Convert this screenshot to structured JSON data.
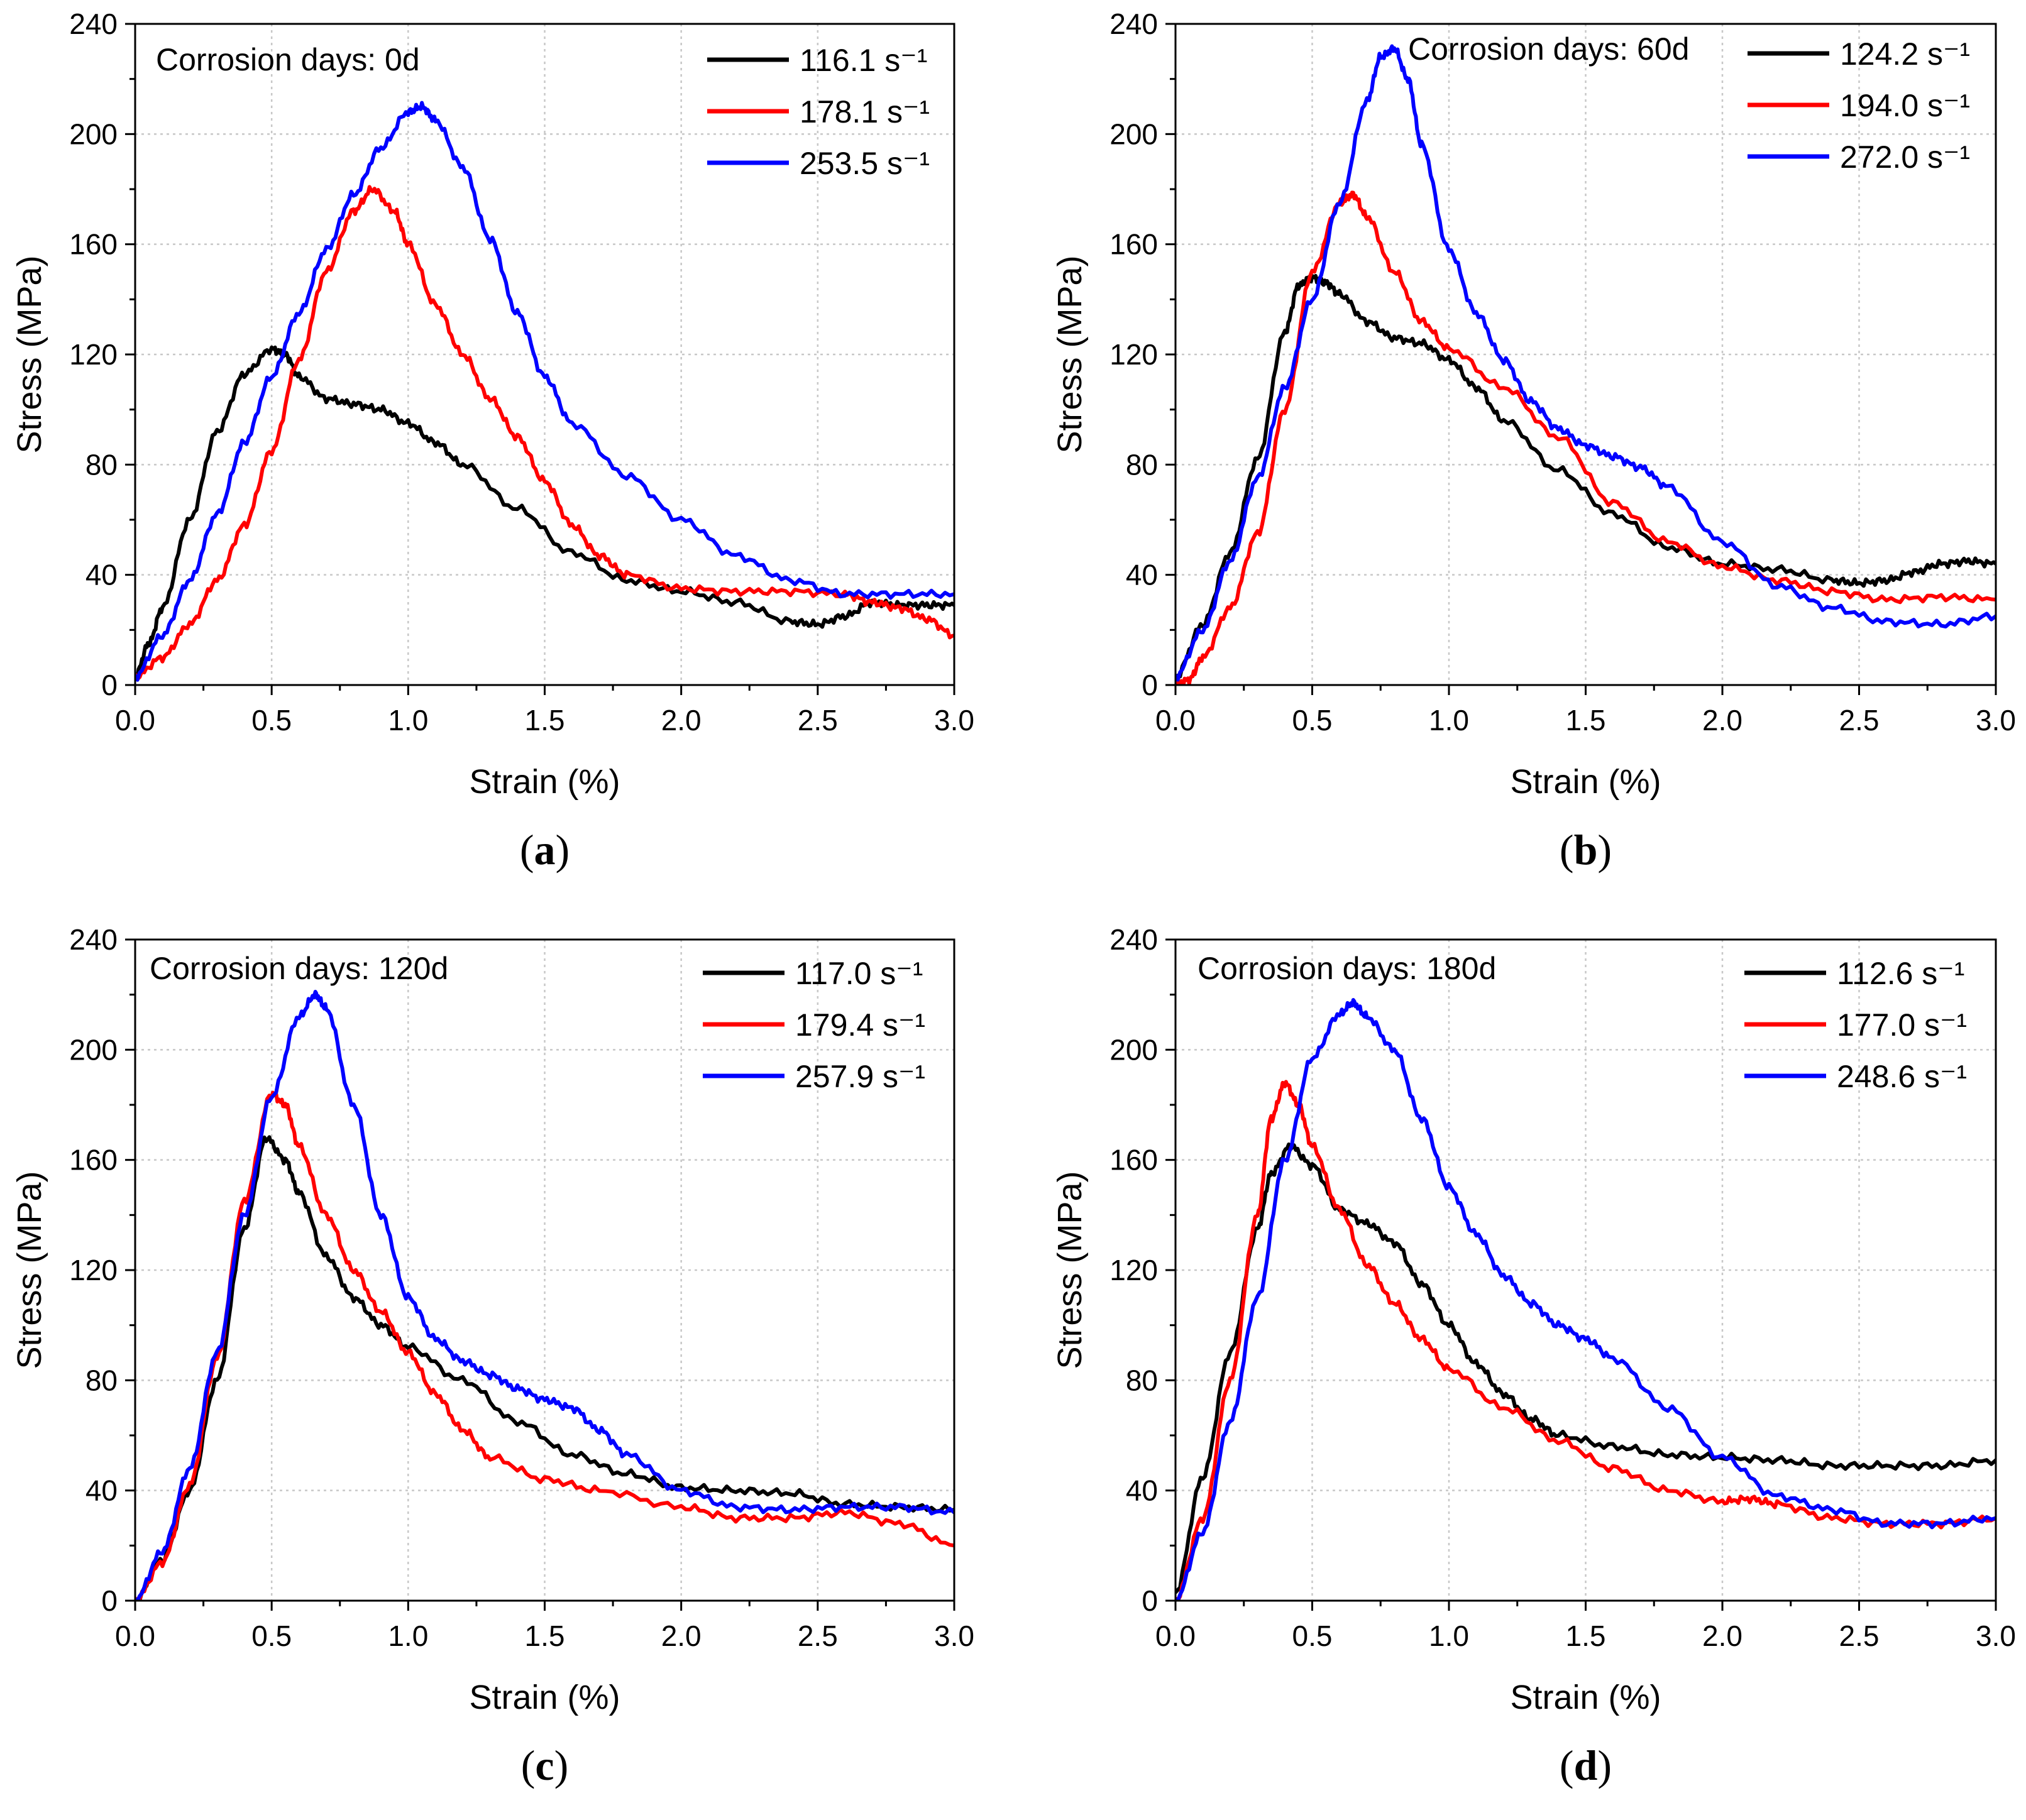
{
  "figure": {
    "panel_labels": [
      "a",
      "b",
      "c",
      "d"
    ]
  },
  "colors": {
    "black": "#000000",
    "red": "#ff0000",
    "blue": "#0000ff"
  },
  "chart_data": [
    {
      "type": "line",
      "panel": "a",
      "annotation": "Corrosion days: 0d",
      "xlabel": "Strain (%)",
      "ylabel": "Stress (MPa)",
      "xlim": [
        0,
        3.0
      ],
      "ylim": [
        0,
        240
      ],
      "xticks": [
        0.0,
        0.5,
        1.0,
        1.5,
        2.0,
        2.5,
        3.0
      ],
      "yticks": [
        0,
        40,
        80,
        120,
        160,
        200,
        240
      ],
      "grid": true,
      "legend_position": "top-right",
      "series": [
        {
          "name": "116.1 s⁻¹",
          "color": "black",
          "x": [
            0,
            0.05,
            0.1,
            0.2,
            0.3,
            0.4,
            0.5,
            0.55,
            0.6,
            0.7,
            0.8,
            0.9,
            1.0,
            1.1,
            1.2,
            1.4,
            1.6,
            1.8,
            2.0,
            2.2,
            2.4,
            2.5,
            2.6,
            2.7,
            2.8,
            2.9,
            3.0
          ],
          "y": [
            3,
            15,
            28,
            60,
            92,
            113,
            122,
            120,
            112,
            104,
            102,
            100,
            95,
            88,
            80,
            64,
            48,
            38,
            34,
            30,
            23,
            22,
            25,
            30,
            29,
            29,
            29
          ]
        },
        {
          "name": "178.1 s⁻¹",
          "color": "red",
          "x": [
            0,
            0.1,
            0.2,
            0.3,
            0.4,
            0.5,
            0.6,
            0.7,
            0.8,
            0.87,
            0.95,
            1.0,
            1.1,
            1.2,
            1.3,
            1.4,
            1.5,
            1.6,
            1.7,
            1.8,
            2.0,
            2.2,
            2.4,
            2.6,
            2.7,
            2.8,
            2.9,
            3.0
          ],
          "y": [
            3,
            10,
            22,
            38,
            58,
            85,
            118,
            150,
            172,
            180,
            172,
            160,
            138,
            120,
            104,
            90,
            74,
            58,
            47,
            40,
            35,
            34,
            34,
            33,
            30,
            28,
            24,
            18
          ]
        },
        {
          "name": "253.5 s⁻¹",
          "color": "blue",
          "x": [
            0,
            0.1,
            0.2,
            0.3,
            0.4,
            0.5,
            0.6,
            0.7,
            0.8,
            0.9,
            1.0,
            1.05,
            1.1,
            1.2,
            1.3,
            1.4,
            1.5,
            1.6,
            1.8,
            2.0,
            2.2,
            2.4,
            2.6,
            2.8,
            3.0
          ],
          "y": [
            3,
            18,
            38,
            62,
            88,
            112,
            135,
            158,
            178,
            195,
            208,
            210,
            205,
            188,
            162,
            135,
            112,
            95,
            76,
            60,
            47,
            38,
            33,
            33,
            33
          ]
        }
      ]
    },
    {
      "type": "line",
      "panel": "b",
      "annotation": "Corrosion days: 60d",
      "xlabel": "Strain (%)",
      "ylabel": "Stress (MPa)",
      "xlim": [
        0,
        3.0
      ],
      "ylim": [
        0,
        240
      ],
      "xticks": [
        0.0,
        0.5,
        1.0,
        1.5,
        2.0,
        2.5,
        3.0
      ],
      "yticks": [
        0,
        40,
        80,
        120,
        160,
        200,
        240
      ],
      "grid": true,
      "legend_position": "top-right",
      "series": [
        {
          "name": "124.2 s⁻¹",
          "color": "black",
          "x": [
            0,
            0.1,
            0.2,
            0.3,
            0.4,
            0.45,
            0.5,
            0.55,
            0.6,
            0.7,
            0.8,
            0.9,
            1.0,
            1.1,
            1.2,
            1.4,
            1.6,
            1.8,
            2.0,
            2.2,
            2.4,
            2.5,
            2.6,
            2.7,
            2.8,
            2.9,
            3.0
          ],
          "y": [
            3,
            22,
            48,
            82,
            128,
            145,
            148,
            146,
            142,
            132,
            126,
            124,
            118,
            108,
            96,
            78,
            62,
            50,
            44,
            42,
            38,
            37,
            38,
            41,
            44,
            45,
            44
          ]
        },
        {
          "name": "194.0 s⁻¹",
          "color": "red",
          "x": [
            0,
            0.05,
            0.1,
            0.2,
            0.3,
            0.4,
            0.5,
            0.6,
            0.65,
            0.7,
            0.8,
            0.9,
            1.0,
            1.2,
            1.4,
            1.6,
            1.8,
            2.0,
            2.2,
            2.4,
            2.6,
            2.8,
            3.0
          ],
          "y": [
            0,
            2,
            10,
            28,
            55,
            100,
            150,
            175,
            178,
            170,
            150,
            132,
            122,
            108,
            90,
            66,
            52,
            43,
            38,
            34,
            31,
            32,
            31
          ]
        },
        {
          "name": "272.0 s⁻¹",
          "color": "blue",
          "x": [
            0,
            0.1,
            0.2,
            0.3,
            0.4,
            0.5,
            0.6,
            0.7,
            0.75,
            0.8,
            0.85,
            0.9,
            1.0,
            1.1,
            1.2,
            1.3,
            1.4,
            1.5,
            1.6,
            1.7,
            1.8,
            2.0,
            2.2,
            2.4,
            2.6,
            2.8,
            3.0
          ],
          "y": [
            3,
            20,
            45,
            75,
            108,
            140,
            175,
            212,
            228,
            231,
            220,
            196,
            158,
            135,
            118,
            103,
            93,
            87,
            83,
            79,
            72,
            52,
            36,
            28,
            23,
            22,
            25
          ]
        }
      ]
    },
    {
      "type": "line",
      "panel": "c",
      "annotation": "Corrosion days: 120d",
      "xlabel": "Strain (%)",
      "ylabel": "Stress (MPa)",
      "xlim": [
        0,
        3.0
      ],
      "ylim": [
        0,
        240
      ],
      "xticks": [
        0.0,
        0.5,
        1.0,
        1.5,
        2.0,
        2.5,
        3.0
      ],
      "yticks": [
        0,
        40,
        80,
        120,
        160,
        200,
        240
      ],
      "grid": true,
      "legend_position": "top-right",
      "series": [
        {
          "name": "117.0 s⁻¹",
          "color": "black",
          "x": [
            0,
            0.1,
            0.2,
            0.3,
            0.4,
            0.48,
            0.55,
            0.6,
            0.7,
            0.8,
            0.9,
            1.0,
            1.2,
            1.4,
            1.6,
            1.8,
            2.0,
            2.2,
            2.4,
            2.6,
            2.8,
            3.0
          ],
          "y": [
            0,
            15,
            40,
            80,
            135,
            168,
            160,
            148,
            125,
            110,
            100,
            92,
            80,
            65,
            53,
            46,
            41,
            40,
            39,
            35,
            34,
            33
          ]
        },
        {
          "name": "179.4 s⁻¹",
          "color": "red",
          "x": [
            0,
            0.1,
            0.2,
            0.3,
            0.4,
            0.5,
            0.55,
            0.6,
            0.7,
            0.8,
            0.9,
            1.0,
            1.1,
            1.2,
            1.3,
            1.5,
            1.7,
            2.0,
            2.2,
            2.4,
            2.6,
            2.8,
            3.0
          ],
          "y": [
            0,
            14,
            42,
            88,
            145,
            184,
            180,
            165,
            140,
            120,
            105,
            90,
            75,
            62,
            52,
            44,
            40,
            34,
            30,
            30,
            32,
            28,
            20
          ]
        },
        {
          "name": "257.9 s⁻¹",
          "color": "blue",
          "x": [
            0,
            0.1,
            0.2,
            0.3,
            0.4,
            0.5,
            0.6,
            0.66,
            0.7,
            0.8,
            0.9,
            1.0,
            1.1,
            1.2,
            1.3,
            1.4,
            1.5,
            1.6,
            1.7,
            1.8,
            2.0,
            2.2,
            2.4,
            2.6,
            2.8,
            3.0
          ],
          "y": [
            0,
            18,
            48,
            90,
            140,
            183,
            212,
            220,
            215,
            180,
            140,
            110,
            95,
            87,
            82,
            77,
            73,
            70,
            62,
            53,
            40,
            34,
            33,
            34,
            34,
            32
          ]
        }
      ]
    },
    {
      "type": "line",
      "panel": "d",
      "annotation": "Corrosion days: 180d",
      "xlabel": "Strain (%)",
      "ylabel": "Stress (MPa)",
      "xlim": [
        0,
        3.0
      ],
      "ylim": [
        0,
        240
      ],
      "xticks": [
        0.0,
        0.5,
        1.0,
        1.5,
        2.0,
        2.5,
        3.0
      ],
      "yticks": [
        0,
        40,
        80,
        120,
        160,
        200,
        240
      ],
      "grid": true,
      "legend_position": "top-right",
      "series": [
        {
          "name": "112.6 s⁻¹",
          "color": "black",
          "x": [
            0,
            0.1,
            0.2,
            0.3,
            0.35,
            0.42,
            0.5,
            0.6,
            0.7,
            0.8,
            0.9,
            1.0,
            1.1,
            1.2,
            1.3,
            1.4,
            1.6,
            1.8,
            2.0,
            2.2,
            2.4,
            2.6,
            2.8,
            3.0
          ],
          "y": [
            3,
            45,
            90,
            135,
            155,
            165,
            158,
            142,
            137,
            130,
            115,
            100,
            86,
            75,
            66,
            60,
            56,
            53,
            52,
            51,
            49,
            49,
            49,
            51
          ]
        },
        {
          "name": "177.0 s⁻¹",
          "color": "red",
          "x": [
            0,
            0.1,
            0.2,
            0.3,
            0.35,
            0.4,
            0.45,
            0.5,
            0.6,
            0.7,
            0.8,
            0.9,
            1.0,
            1.2,
            1.4,
            1.6,
            1.8,
            2.0,
            2.1,
            2.2,
            2.4,
            2.6,
            2.8,
            3.0
          ],
          "y": [
            0,
            30,
            80,
            140,
            175,
            188,
            180,
            165,
            142,
            122,
            108,
            95,
            84,
            70,
            58,
            48,
            40,
            36,
            37,
            35,
            30,
            28,
            28,
            30
          ]
        },
        {
          "name": "248.6 s⁻¹",
          "color": "blue",
          "x": [
            0,
            0.1,
            0.2,
            0.3,
            0.4,
            0.5,
            0.6,
            0.65,
            0.7,
            0.8,
            0.9,
            1.0,
            1.1,
            1.2,
            1.3,
            1.4,
            1.5,
            1.6,
            1.8,
            2.0,
            2.2,
            2.4,
            2.6,
            2.8,
            3.0
          ],
          "y": [
            0,
            25,
            65,
            110,
            160,
            197,
            213,
            217,
            212,
            200,
            175,
            150,
            133,
            118,
            108,
            100,
            95,
            88,
            70,
            52,
            38,
            33,
            28,
            28,
            30
          ]
        }
      ]
    }
  ]
}
